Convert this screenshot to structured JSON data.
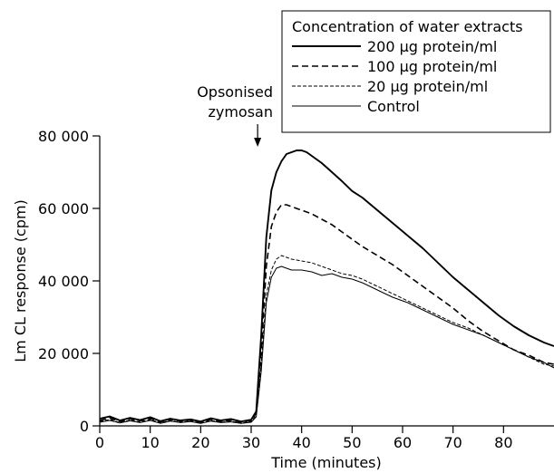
{
  "chart_data": {
    "type": "line",
    "title": "",
    "xlabel": "Time (minutes)",
    "ylabel": "Lm CL response (cpm)",
    "xlim": [
      0,
      90
    ],
    "ylim": [
      0,
      80000
    ],
    "x_ticks": [
      0,
      10,
      20,
      30,
      40,
      50,
      60,
      70,
      80
    ],
    "x_tick_labels": [
      "0",
      "10",
      "20",
      "30",
      "40",
      "50",
      "60",
      "70",
      "80"
    ],
    "y_ticks": [
      0,
      20000,
      40000,
      60000,
      80000
    ],
    "y_tick_labels": [
      "0",
      "20 000",
      "40 000",
      "60 000",
      "80 000"
    ],
    "grid": false,
    "legend": {
      "title": "Concentration of water extracts",
      "placement": "top-right"
    },
    "annotations": [
      {
        "text": [
          "Opsonised",
          "zymosan"
        ],
        "x": 32
      }
    ],
    "series": [
      {
        "name": "200 µg protein/ml",
        "style": "solid-thick",
        "x": [
          0,
          2,
          4,
          6,
          8,
          10,
          12,
          14,
          16,
          18,
          20,
          22,
          24,
          26,
          28,
          30,
          31,
          32,
          33,
          34,
          35,
          36,
          37,
          38,
          39,
          40,
          41,
          42,
          44,
          46,
          48,
          50,
          52,
          55,
          58,
          61,
          64,
          67,
          70,
          73,
          76,
          79,
          82,
          85,
          88,
          90
        ],
        "y": [
          2000,
          2600,
          1500,
          2200,
          1600,
          2400,
          1300,
          2000,
          1500,
          1800,
          1200,
          2100,
          1500,
          1900,
          1200,
          1700,
          4000,
          25000,
          52000,
          65000,
          70000,
          73000,
          75000,
          75500,
          76000,
          76000,
          75500,
          74500,
          72500,
          70000,
          67500,
          64800,
          63000,
          59500,
          56000,
          52500,
          49000,
          45000,
          41000,
          37500,
          34000,
          30500,
          27500,
          25000,
          23000,
          22000
        ]
      },
      {
        "name": "100 µg protein/ml",
        "style": "dashed",
        "x": [
          0,
          2,
          4,
          6,
          8,
          10,
          12,
          14,
          16,
          18,
          20,
          22,
          24,
          26,
          28,
          30,
          31,
          32,
          33,
          34,
          35,
          36,
          37,
          38,
          40,
          42,
          44,
          46,
          48,
          50,
          52,
          55,
          58,
          61,
          64,
          67,
          70,
          73,
          76,
          79,
          82,
          85,
          88,
          90
        ],
        "y": [
          1500,
          2200,
          1200,
          1900,
          1400,
          2000,
          1100,
          1800,
          1300,
          1600,
          1000,
          1800,
          1200,
          1600,
          1000,
          1500,
          3500,
          20000,
          44000,
          55000,
          59000,
          61000,
          61000,
          60500,
          59500,
          58500,
          57000,
          55500,
          53500,
          51500,
          49500,
          47000,
          44500,
          41500,
          38500,
          35500,
          32500,
          29000,
          26000,
          23500,
          21000,
          19500,
          17500,
          17000
        ]
      },
      {
        "name": "20 µg protein/ml",
        "style": "dashed-fine",
        "x": [
          0,
          2,
          4,
          6,
          8,
          10,
          12,
          14,
          16,
          18,
          20,
          22,
          24,
          26,
          28,
          30,
          31,
          32,
          33,
          34,
          35,
          36,
          37,
          38,
          40,
          42,
          44,
          46,
          48,
          50,
          52,
          55,
          58,
          61,
          64,
          67,
          70,
          73,
          76,
          79,
          82,
          85,
          88,
          90
        ],
        "y": [
          1200,
          1800,
          900,
          1600,
          1100,
          1700,
          900,
          1500,
          1000,
          1400,
          800,
          1500,
          1000,
          1300,
          800,
          1200,
          3000,
          17000,
          36000,
          43000,
          46000,
          47000,
          46500,
          46000,
          45500,
          45000,
          44000,
          43000,
          42000,
          41500,
          40500,
          38500,
          36500,
          34500,
          32500,
          30500,
          28500,
          27000,
          25000,
          23000,
          21000,
          19000,
          17000,
          16500
        ]
      },
      {
        "name": "Control",
        "style": "solid-thin",
        "x": [
          0,
          2,
          4,
          6,
          8,
          10,
          12,
          14,
          16,
          18,
          20,
          22,
          24,
          26,
          28,
          30,
          31,
          32,
          33,
          34,
          35,
          36,
          37,
          38,
          40,
          42,
          44,
          46,
          48,
          50,
          52,
          55,
          58,
          61,
          64,
          67,
          70,
          73,
          76,
          79,
          82,
          85,
          88,
          90
        ],
        "y": [
          1000,
          1500,
          800,
          1400,
          900,
          1500,
          700,
          1300,
          900,
          1200,
          700,
          1300,
          900,
          1100,
          700,
          1000,
          2500,
          15000,
          34000,
          41000,
          43500,
          44000,
          43500,
          43000,
          43000,
          42500,
          41500,
          42000,
          41000,
          40500,
          39500,
          37500,
          35500,
          34000,
          32000,
          30000,
          28000,
          26500,
          25000,
          23000,
          21000,
          19000,
          17500,
          16000
        ]
      }
    ]
  }
}
